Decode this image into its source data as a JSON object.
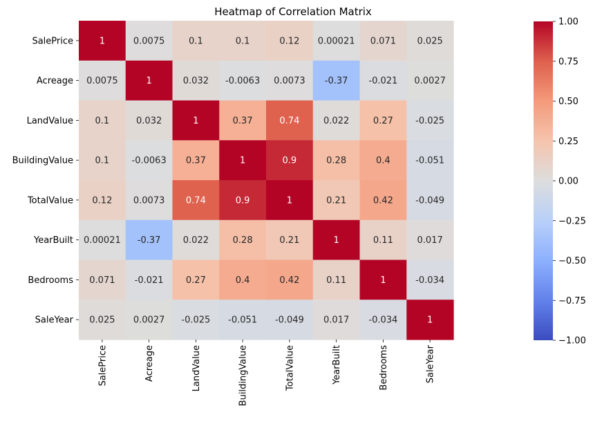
{
  "chart_data": {
    "type": "heatmap",
    "title": "Heatmap of Correlation Matrix",
    "xlabel": "",
    "ylabel": "",
    "rows": [
      "SalePrice",
      "Acreage",
      "LandValue",
      "BuildingValue",
      "TotalValue",
      "YearBuilt",
      "Bedrooms",
      "SaleYear"
    ],
    "columns": [
      "SalePrice",
      "Acreage",
      "LandValue",
      "BuildingValue",
      "TotalValue",
      "YearBuilt",
      "Bedrooms",
      "SaleYear"
    ],
    "values": [
      [
        1,
        0.0075,
        0.1,
        0.1,
        0.12,
        0.00021,
        0.071,
        0.025
      ],
      [
        0.0075,
        1,
        0.032,
        -0.0063,
        0.0073,
        -0.37,
        -0.021,
        0.0027
      ],
      [
        0.1,
        0.032,
        1,
        0.37,
        0.74,
        0.022,
        0.27,
        -0.025
      ],
      [
        0.1,
        -0.0063,
        0.37,
        1,
        0.9,
        0.28,
        0.4,
        -0.051
      ],
      [
        0.12,
        0.0073,
        0.74,
        0.9,
        1,
        0.21,
        0.42,
        -0.049
      ],
      [
        0.00021,
        -0.37,
        0.022,
        0.28,
        0.21,
        1,
        0.11,
        0.017
      ],
      [
        0.071,
        -0.021,
        0.27,
        0.4,
        0.42,
        0.11,
        1,
        -0.034
      ],
      [
        0.025,
        0.0027,
        -0.025,
        -0.051,
        -0.049,
        0.017,
        -0.034,
        1
      ]
    ],
    "annotations": [
      [
        "1",
        "0.0075",
        "0.1",
        "0.1",
        "0.12",
        "0.00021",
        "0.071",
        "0.025"
      ],
      [
        "0.0075",
        "1",
        "0.032",
        "-0.0063",
        "0.0073",
        "-0.37",
        "-0.021",
        "0.0027"
      ],
      [
        "0.1",
        "0.032",
        "1",
        "0.37",
        "0.74",
        "0.022",
        "0.27",
        "-0.025"
      ],
      [
        "0.1",
        "-0.0063",
        "0.37",
        "1",
        "0.9",
        "0.28",
        "0.4",
        "-0.051"
      ],
      [
        "0.12",
        "0.0073",
        "0.74",
        "0.9",
        "1",
        "0.21",
        "0.42",
        "-0.049"
      ],
      [
        "0.00021",
        "-0.37",
        "0.022",
        "0.28",
        "0.21",
        "1",
        "0.11",
        "0.017"
      ],
      [
        "0.071",
        "-0.021",
        "0.27",
        "0.4",
        "0.42",
        "0.11",
        "1",
        "-0.034"
      ],
      [
        "0.025",
        "0.0027",
        "-0.025",
        "-0.051",
        "-0.049",
        "0.017",
        "-0.034",
        "1"
      ]
    ],
    "colormap": "coolwarm",
    "vmin": -1,
    "vmax": 1,
    "colorbar_ticks": [
      1.0,
      0.75,
      0.5,
      0.25,
      0.0,
      -0.25,
      -0.5,
      -0.75,
      -1.0
    ],
    "colorbar_tick_labels": [
      "1.00",
      "0.75",
      "0.50",
      "0.25",
      "0.00",
      "−0.25",
      "−0.50",
      "−0.75",
      "−1.00"
    ],
    "grid": false,
    "legend": "colorbar-right"
  }
}
